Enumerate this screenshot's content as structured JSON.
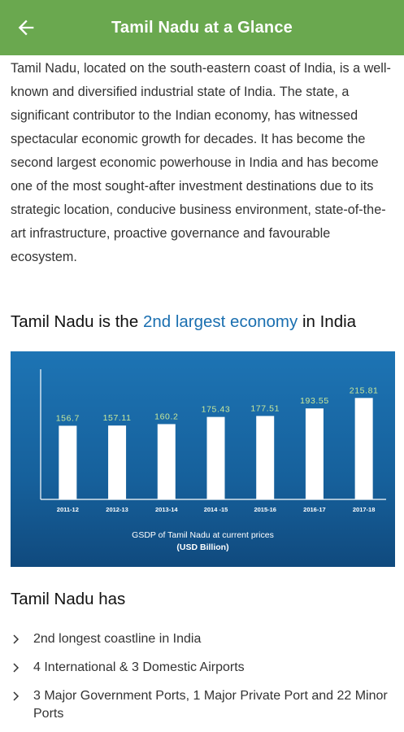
{
  "appbar": {
    "title": "Tamil Nadu at a Glance",
    "back_icon": "arrow-left-icon",
    "background": "#6aa84f"
  },
  "intro": {
    "text": "Tamil Nadu, located on the south-eastern coast of India, is a well-known and diversified industrial state of India. The state, a significant contributor to the Indian economy, has witnessed spectacular economic growth for decades. It has become the second largest economic powerhouse in India and has become one of the most sought-after investment destinations due to its strategic location, conducive business environment, state-of-the-art infrastructure, proactive governance and favourable ecosystem."
  },
  "economy_heading": {
    "prefix": "Tamil Nadu is the ",
    "highlight": "2nd largest economy",
    "suffix": " in India",
    "highlight_color": "#1a6fb0"
  },
  "chart_data": {
    "type": "bar",
    "categories": [
      "2011-12",
      "2012-13",
      "2013-14",
      "2014 -15",
      "2015-16",
      "2016-17",
      "2017-18"
    ],
    "values": [
      156.7,
      157.11,
      160.2,
      175.43,
      177.51,
      193.55,
      215.81
    ],
    "value_labels": [
      "156.7",
      "157.11",
      "160.2",
      "175.43",
      "177.51",
      "193.55",
      "215.81"
    ],
    "caption_line1": "GSDP of Tamil Nadu at current prices",
    "caption_line2": "(USD Billion)",
    "ylim": [
      0,
      270
    ],
    "bar_color": "#ffffff",
    "label_color": "#c8e89a",
    "background": "#1a6aa8"
  },
  "has_heading": "Tamil Nadu has",
  "facts": [
    "2nd longest coastline in India",
    "4 International & 3 Domestic Airports",
    "3 Major Government Ports, 1 Major Private Port and 22 Minor Ports"
  ]
}
